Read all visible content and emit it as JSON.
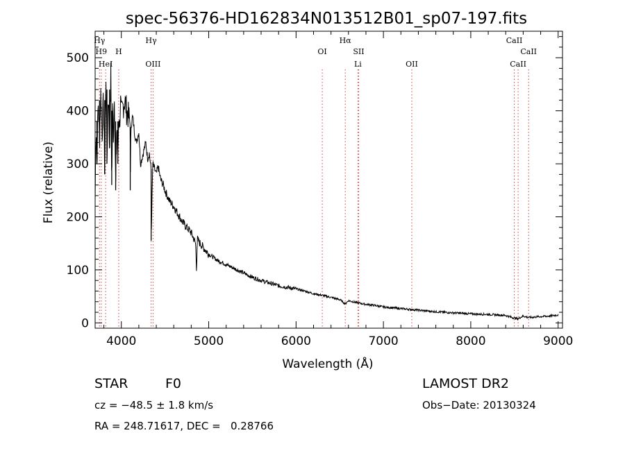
{
  "chart_data": {
    "type": "line",
    "title": "spec-56376-HD162834N013512B01_sp07-197.fits",
    "xlabel": "Wavelength (Å)",
    "ylabel": "Flux (relative)",
    "xlim": [
      3700,
      9050
    ],
    "ylim": [
      -10,
      550
    ],
    "xticks": [
      "4000",
      "5000",
      "6000",
      "7000",
      "8000",
      "9000"
    ],
    "yticks": [
      "0",
      "100",
      "200",
      "300",
      "400",
      "500"
    ],
    "grid": false,
    "series": [
      {
        "x": [
          3700,
          3710,
          3720,
          3735,
          3750,
          3765,
          3780,
          3795,
          3810,
          3825,
          3835,
          3850,
          3865,
          3880,
          3890,
          3900,
          3910,
          3920,
          3935,
          3950,
          3960,
          3970,
          3980,
          3990,
          4000,
          4020,
          4040,
          4060,
          4080,
          4100,
          4102,
          4110,
          4130,
          4150,
          4170,
          4200,
          4220,
          4250,
          4280,
          4300,
          4320,
          4340,
          4341,
          4360,
          4380,
          4400,
          4420,
          4450,
          4480,
          4500,
          4550,
          4600,
          4650,
          4700,
          4750,
          4800,
          4850,
          4861,
          4870,
          4900,
          4950,
          5000,
          5100,
          5200,
          5300,
          5400,
          5500,
          5600,
          5700,
          5800,
          5900,
          6000,
          6100,
          6200,
          6300,
          6400,
          6500,
          6563,
          6600,
          6700,
          6800,
          6900,
          7000,
          7200,
          7400,
          7600,
          7800,
          8000,
          8200,
          8400,
          8498,
          8542,
          8600,
          8662,
          8800,
          8900,
          8950,
          9000
        ],
        "y": [
          230,
          380,
          300,
          420,
          340,
          440,
          360,
          420,
          280,
          480,
          300,
          440,
          330,
          470,
          260,
          400,
          350,
          440,
          250,
          380,
          300,
          400,
          370,
          420,
          390,
          410,
          420,
          400,
          390,
          380,
          250,
          370,
          390,
          360,
          340,
          360,
          300,
          320,
          340,
          310,
          320,
          290,
          155,
          300,
          290,
          280,
          295,
          270,
          260,
          250,
          230,
          220,
          205,
          190,
          180,
          170,
          150,
          100,
          158,
          150,
          140,
          130,
          118,
          110,
          102,
          94,
          86,
          80,
          75,
          70,
          67,
          64,
          60,
          55,
          52,
          48,
          44,
          36,
          42,
          38,
          35,
          33,
          30,
          27,
          24,
          21,
          19,
          17,
          16,
          14,
          9,
          8,
          13,
          10,
          12,
          13,
          14,
          15
        ]
      }
    ],
    "lines": [
      {
        "label": "Hγ",
        "x": 3750,
        "row": 1
      },
      {
        "label": "H9",
        "x": 3770,
        "row": 2
      },
      {
        "label": "HeI",
        "x": 3820,
        "row": 3
      },
      {
        "label": "H",
        "x": 3970,
        "row": 2
      },
      {
        "label": "Hγ",
        "x": 4341,
        "row": 1
      },
      {
        "label": "OIII",
        "x": 4363,
        "row": 3
      },
      {
        "label": "OI",
        "x": 6300,
        "row": 2
      },
      {
        "label": "Hα",
        "x": 6563,
        "row": 1
      },
      {
        "label": "SII",
        "x": 6717,
        "row": 2
      },
      {
        "label": "Li",
        "x": 6708,
        "row": 3
      },
      {
        "label": "OII",
        "x": 7325,
        "row": 3
      },
      {
        "label": "CaII",
        "x": 8498,
        "row": 1
      },
      {
        "label": "CaII",
        "x": 8542,
        "row": 3
      },
      {
        "label": "CaII",
        "x": 8662,
        "row": 2
      }
    ]
  },
  "info": {
    "class_label": "STAR",
    "subclass": "F0",
    "survey": "LAMOST DR2",
    "cz": "cz = −48.5 ± 1.8 km/s",
    "obs_date": "Obs−Date: 20130324",
    "coords": "RA = 248.71617, DEC =   0.28766"
  }
}
